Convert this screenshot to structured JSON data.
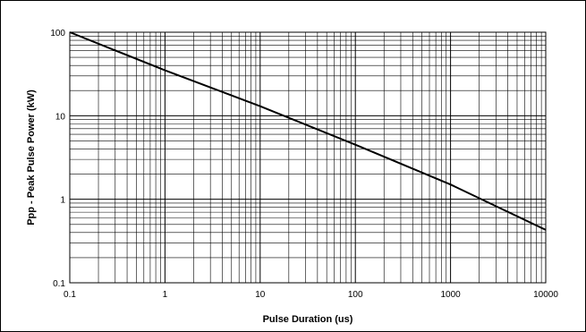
{
  "chart_data": {
    "type": "line",
    "title": "",
    "xlabel": "Pulse Duration (us)",
    "ylabel": "Ppp - Peak Pulse Power (kW)",
    "x_scale": "log",
    "y_scale": "log",
    "xlim": [
      0.1,
      10000
    ],
    "ylim": [
      0.1,
      100
    ],
    "grid": true,
    "legend": "none",
    "x_ticks": [
      "0.1",
      "1",
      "10",
      "100",
      "1000",
      "10000"
    ],
    "y_ticks": [
      "0.1",
      "1",
      "10",
      "100"
    ],
    "series": [
      {
        "x": [
          0.1,
          1,
          10,
          100,
          1000,
          10000
        ],
        "y": [
          100,
          35,
          13,
          4.5,
          1.5,
          0.43
        ],
        "color": "#000000"
      }
    ]
  }
}
